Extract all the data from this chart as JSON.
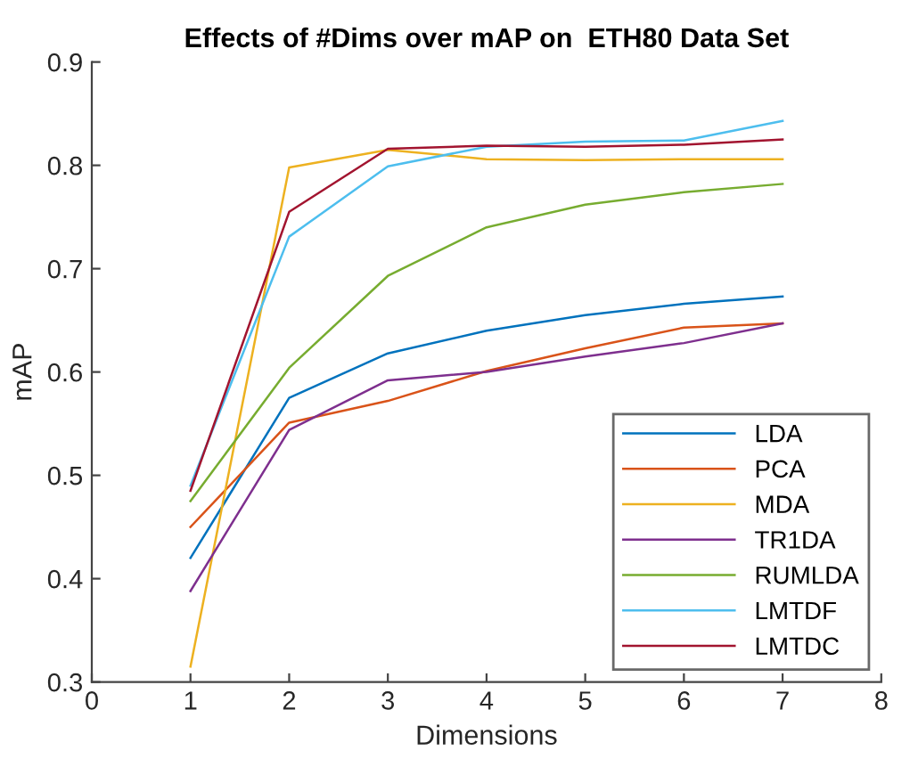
{
  "chart_data": {
    "type": "line",
    "title": "Effects of #Dims over mAP on  ETH80 Data Set",
    "xlabel": "Dimensions",
    "ylabel": "mAP",
    "x": [
      1,
      2,
      3,
      4,
      5,
      6,
      7
    ],
    "series": [
      {
        "name": "LDA",
        "color": "#0072bd",
        "values": [
          0.42,
          0.575,
          0.618,
          0.64,
          0.655,
          0.666,
          0.673
        ]
      },
      {
        "name": "PCA",
        "color": "#d95319",
        "values": [
          0.45,
          0.551,
          0.572,
          0.601,
          0.623,
          0.643,
          0.647
        ]
      },
      {
        "name": "MDA",
        "color": "#edb120",
        "values": [
          0.315,
          0.798,
          0.815,
          0.806,
          0.805,
          0.806,
          0.806
        ]
      },
      {
        "name": "TR1DA",
        "color": "#7e2f8e",
        "values": [
          0.388,
          0.544,
          0.592,
          0.6,
          0.615,
          0.628,
          0.647
        ]
      },
      {
        "name": "RUMLDA",
        "color": "#77ac30",
        "values": [
          0.475,
          0.604,
          0.693,
          0.74,
          0.762,
          0.774,
          0.782
        ]
      },
      {
        "name": "LMTDF",
        "color": "#4dbeee",
        "values": [
          0.49,
          0.731,
          0.799,
          0.818,
          0.823,
          0.824,
          0.843
        ]
      },
      {
        "name": "LMTDC",
        "color": "#a2142f",
        "values": [
          0.485,
          0.755,
          0.816,
          0.819,
          0.818,
          0.82,
          0.825
        ]
      }
    ],
    "xlim": [
      0,
      8
    ],
    "xticks": [
      0,
      1,
      2,
      3,
      4,
      5,
      6,
      7,
      8
    ],
    "ylim": [
      0.3,
      0.9
    ],
    "yticks": [
      0.3,
      0.4,
      0.5,
      0.6,
      0.7,
      0.8,
      0.9
    ],
    "grid": false,
    "legend": "bottom right",
    "marker": "none",
    "line_style": "solid"
  }
}
